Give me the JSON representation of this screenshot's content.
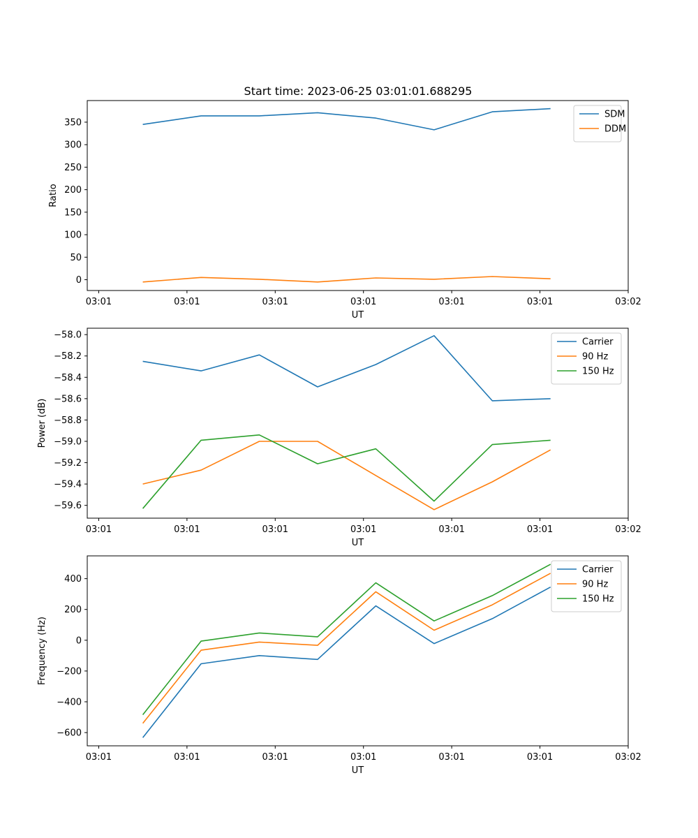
{
  "title": "Start time: 2023-06-25 03:01:01.688295",
  "chart_data": [
    {
      "type": "line",
      "ylabel": "Ratio",
      "xlabel": "UT",
      "x_tick_labels": [
        "03:01",
        "03:01",
        "03:01",
        "03:01",
        "03:01",
        "03:01",
        "03:02"
      ],
      "xlim": [
        0,
        6
      ],
      "ylim": [
        -24,
        398
      ],
      "y_ticks": [
        0,
        50,
        100,
        150,
        200,
        250,
        300,
        350
      ],
      "y_tick_labels": [
        "0",
        "50",
        "100",
        "150",
        "200",
        "250",
        "300",
        "350"
      ],
      "legend": "top-right",
      "x": [
        0.5,
        1.16,
        1.82,
        2.48,
        3.14,
        3.8,
        4.46,
        5.12
      ],
      "series": [
        {
          "name": "SDM",
          "color": "#1f77b4",
          "values": [
            345,
            364,
            364,
            371,
            359,
            333,
            373,
            380
          ]
        },
        {
          "name": "DDM",
          "color": "#ff7f0e",
          "values": [
            -5,
            5,
            1,
            -5,
            4,
            1,
            7,
            2
          ]
        }
      ]
    },
    {
      "type": "line",
      "ylabel": "Power (dB)",
      "xlabel": "UT",
      "x_tick_labels": [
        "03:01",
        "03:01",
        "03:01",
        "03:01",
        "03:01",
        "03:01",
        "03:02"
      ],
      "xlim": [
        0,
        6
      ],
      "ylim": [
        -59.72,
        -57.94
      ],
      "y_ticks": [
        -59.6,
        -59.4,
        -59.2,
        -59.0,
        -58.8,
        -58.6,
        -58.4,
        -58.2,
        -58.0
      ],
      "y_tick_labels": [
        "−59.6",
        "−59.4",
        "−59.2",
        "−59.0",
        "−58.8",
        "−58.6",
        "−58.4",
        "−58.2",
        "−58.0"
      ],
      "legend": "top-right",
      "x": [
        0.5,
        1.16,
        1.82,
        2.48,
        3.14,
        3.8,
        4.46,
        5.12
      ],
      "series": [
        {
          "name": "Carrier",
          "color": "#1f77b4",
          "values": [
            -58.25,
            -58.34,
            -58.19,
            -58.49,
            -58.28,
            -58.01,
            -58.62,
            -58.6
          ]
        },
        {
          "name": "90 Hz",
          "color": "#ff7f0e",
          "values": [
            -59.4,
            -59.27,
            -59.0,
            -59.0,
            -59.32,
            -59.64,
            -59.38,
            -59.08
          ]
        },
        {
          "name": "150 Hz",
          "color": "#2ca02c",
          "values": [
            -59.63,
            -58.99,
            -58.94,
            -59.21,
            -59.07,
            -59.56,
            -59.03,
            -58.99
          ]
        }
      ]
    },
    {
      "type": "line",
      "ylabel": "Frequency (Hz)",
      "xlabel": "UT",
      "x_tick_labels": [
        "03:01",
        "03:01",
        "03:01",
        "03:01",
        "03:01",
        "03:01",
        "03:02"
      ],
      "xlim": [
        0,
        6
      ],
      "ylim": [
        -686,
        548
      ],
      "y_ticks": [
        -600,
        -400,
        -200,
        0,
        200,
        400
      ],
      "y_tick_labels": [
        "−600",
        "−400",
        "−200",
        "0",
        "200",
        "400"
      ],
      "legend": "top-right",
      "x": [
        0.5,
        1.16,
        1.82,
        2.48,
        3.14,
        3.8,
        4.46,
        5.12
      ],
      "series": [
        {
          "name": "Carrier",
          "color": "#1f77b4",
          "values": [
            -633,
            -153,
            -100,
            -125,
            223,
            -22,
            140,
            345
          ]
        },
        {
          "name": "90 Hz",
          "color": "#ff7f0e",
          "values": [
            -540,
            -65,
            -12,
            -33,
            315,
            65,
            230,
            435
          ]
        },
        {
          "name": "150 Hz",
          "color": "#2ca02c",
          "values": [
            -484,
            -6,
            47,
            22,
            373,
            125,
            290,
            493
          ]
        }
      ]
    }
  ]
}
